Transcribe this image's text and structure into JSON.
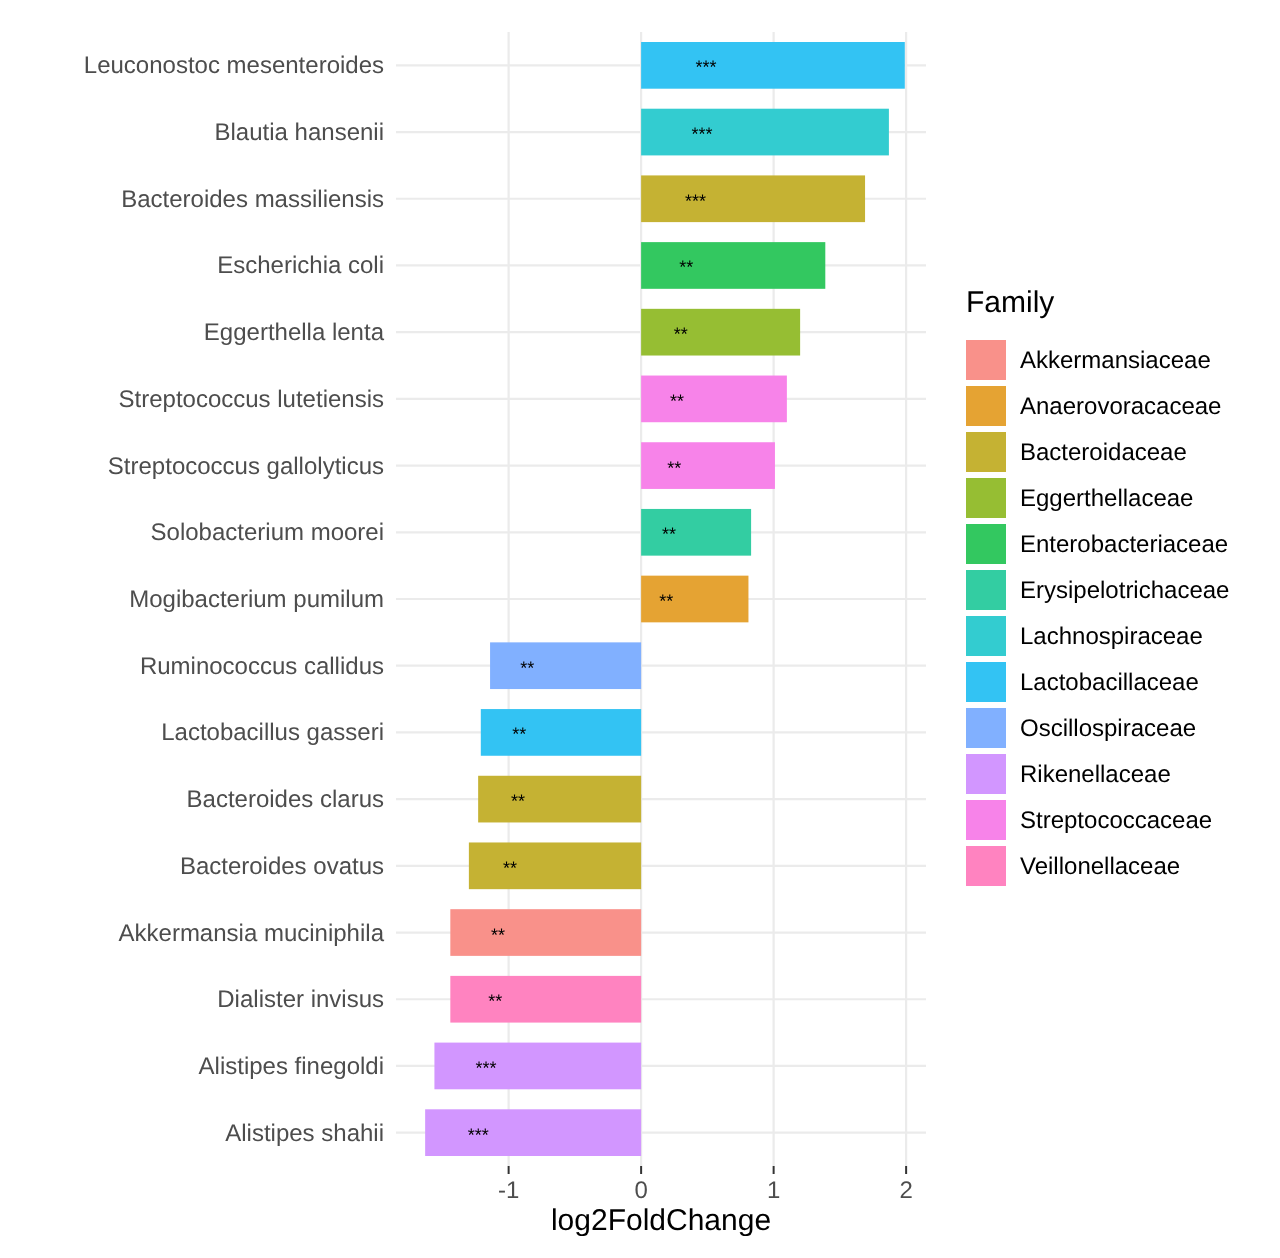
{
  "chart_data": {
    "type": "bar",
    "orientation": "horizontal",
    "xlabel": "log2FoldChange",
    "legend_title": "Family",
    "legend": "right",
    "grid": true,
    "categories": [
      "Leuconostoc mesenteroides",
      "Blautia hansenii",
      "Bacteroides massiliensis",
      "Escherichia coli",
      "Eggerthella lenta",
      "Streptococcus lutetiensis",
      "Streptococcus gallolyticus",
      "Solobacterium moorei",
      "Mogibacterium pumilum",
      "Ruminococcus callidus",
      "Lactobacillus gasseri",
      "Bacteroides clarus",
      "Bacteroides ovatus",
      "Akkermansia muciniphila",
      "Dialister invisus",
      "Alistipes finegoldi",
      "Alistipes shahii"
    ],
    "xlim": [
      -1.85,
      2.15
    ],
    "xticks": [
      -1,
      0,
      1,
      2
    ],
    "series": [
      {
        "name": "Akkermansiaceae",
        "color": "#f9918a",
        "values": [
          null,
          null,
          null,
          null,
          null,
          null,
          null,
          null,
          null,
          null,
          null,
          null,
          null,
          -1.44,
          null,
          null,
          null
        ]
      },
      {
        "name": "Anaerovoracaceae",
        "color": "#e5a333",
        "values": [
          null,
          null,
          null,
          null,
          null,
          null,
          null,
          null,
          0.81,
          null,
          null,
          null,
          null,
          null,
          null,
          null,
          null
        ]
      },
      {
        "name": "Bacteroidaceae",
        "color": "#c5b233",
        "values": [
          null,
          null,
          1.69,
          null,
          null,
          null,
          null,
          null,
          null,
          null,
          null,
          -1.23,
          -1.3,
          null,
          null,
          null,
          null
        ]
      },
      {
        "name": "Eggerthellaceae",
        "color": "#96be33",
        "values": [
          null,
          null,
          null,
          null,
          1.2,
          null,
          null,
          null,
          null,
          null,
          null,
          null,
          null,
          null,
          null,
          null,
          null
        ]
      },
      {
        "name": "Enterobacteriaceae",
        "color": "#33c860",
        "values": [
          null,
          null,
          null,
          1.39,
          null,
          null,
          null,
          null,
          null,
          null,
          null,
          null,
          null,
          null,
          null,
          null,
          null
        ]
      },
      {
        "name": "Erysipelotrichaceae",
        "color": "#33cda2",
        "values": [
          null,
          null,
          null,
          null,
          null,
          null,
          null,
          0.83,
          null,
          null,
          null,
          null,
          null,
          null,
          null,
          null,
          null
        ]
      },
      {
        "name": "Lachnospiraceae",
        "color": "#33ccd0",
        "values": [
          null,
          1.87,
          null,
          null,
          null,
          null,
          null,
          null,
          null,
          null,
          null,
          null,
          null,
          null,
          null,
          null,
          null
        ]
      },
      {
        "name": "Lactobacillaceae",
        "color": "#33c3f3",
        "values": [
          1.99,
          null,
          null,
          null,
          null,
          null,
          null,
          null,
          null,
          null,
          -1.21,
          null,
          null,
          null,
          null,
          null,
          null
        ]
      },
      {
        "name": "Oscillospiraceae",
        "color": "#81b0ff",
        "values": [
          null,
          null,
          null,
          null,
          null,
          null,
          null,
          null,
          null,
          -1.14,
          null,
          null,
          null,
          null,
          null,
          null,
          null
        ]
      },
      {
        "name": "Rikenellaceae",
        "color": "#d296ff",
        "values": [
          null,
          null,
          null,
          null,
          null,
          null,
          null,
          null,
          null,
          null,
          null,
          null,
          null,
          null,
          null,
          -1.56,
          -1.63
        ]
      },
      {
        "name": "Streptococcaceae",
        "color": "#f783e9",
        "values": [
          null,
          null,
          null,
          null,
          null,
          1.1,
          1.01,
          null,
          null,
          null,
          null,
          null,
          null,
          null,
          null,
          null,
          null
        ]
      },
      {
        "name": "Veillonellaceae",
        "color": "#ff83c0",
        "values": [
          null,
          null,
          null,
          null,
          null,
          null,
          null,
          null,
          null,
          null,
          null,
          null,
          null,
          null,
          -1.44,
          null,
          null
        ]
      }
    ],
    "annotations": [
      {
        "text": "***",
        "x": 0.49,
        "y": "Leuconostoc mesenteroides"
      },
      {
        "text": "***",
        "x": 0.46,
        "y": "Blautia hansenii"
      },
      {
        "text": "***",
        "x": 0.41,
        "y": "Bacteroides massiliensis"
      },
      {
        "text": "**",
        "x": 0.34,
        "y": "Escherichia coli"
      },
      {
        "text": "**",
        "x": 0.3,
        "y": "Eggerthella lenta"
      },
      {
        "text": "**",
        "x": 0.27,
        "y": "Streptococcus lutetiensis"
      },
      {
        "text": "**",
        "x": 0.25,
        "y": "Streptococcus gallolyticus"
      },
      {
        "text": "**",
        "x": 0.21,
        "y": "Solobacterium moorei"
      },
      {
        "text": "**",
        "x": 0.19,
        "y": "Mogibacterium pumilum"
      },
      {
        "text": "**",
        "x": -0.86,
        "y": "Ruminococcus callidus"
      },
      {
        "text": "**",
        "x": -0.92,
        "y": "Lactobacillus gasseri"
      },
      {
        "text": "**",
        "x": -0.93,
        "y": "Bacteroides clarus"
      },
      {
        "text": "**",
        "x": -0.99,
        "y": "Bacteroides ovatus"
      },
      {
        "text": "**",
        "x": -1.08,
        "y": "Akkermansia muciniphila"
      },
      {
        "text": "**",
        "x": -1.1,
        "y": "Dialister invisus"
      },
      {
        "text": "***",
        "x": -1.17,
        "y": "Alistipes finegoldi"
      },
      {
        "text": "***",
        "x": -1.23,
        "y": "Alistipes shahii"
      }
    ]
  }
}
